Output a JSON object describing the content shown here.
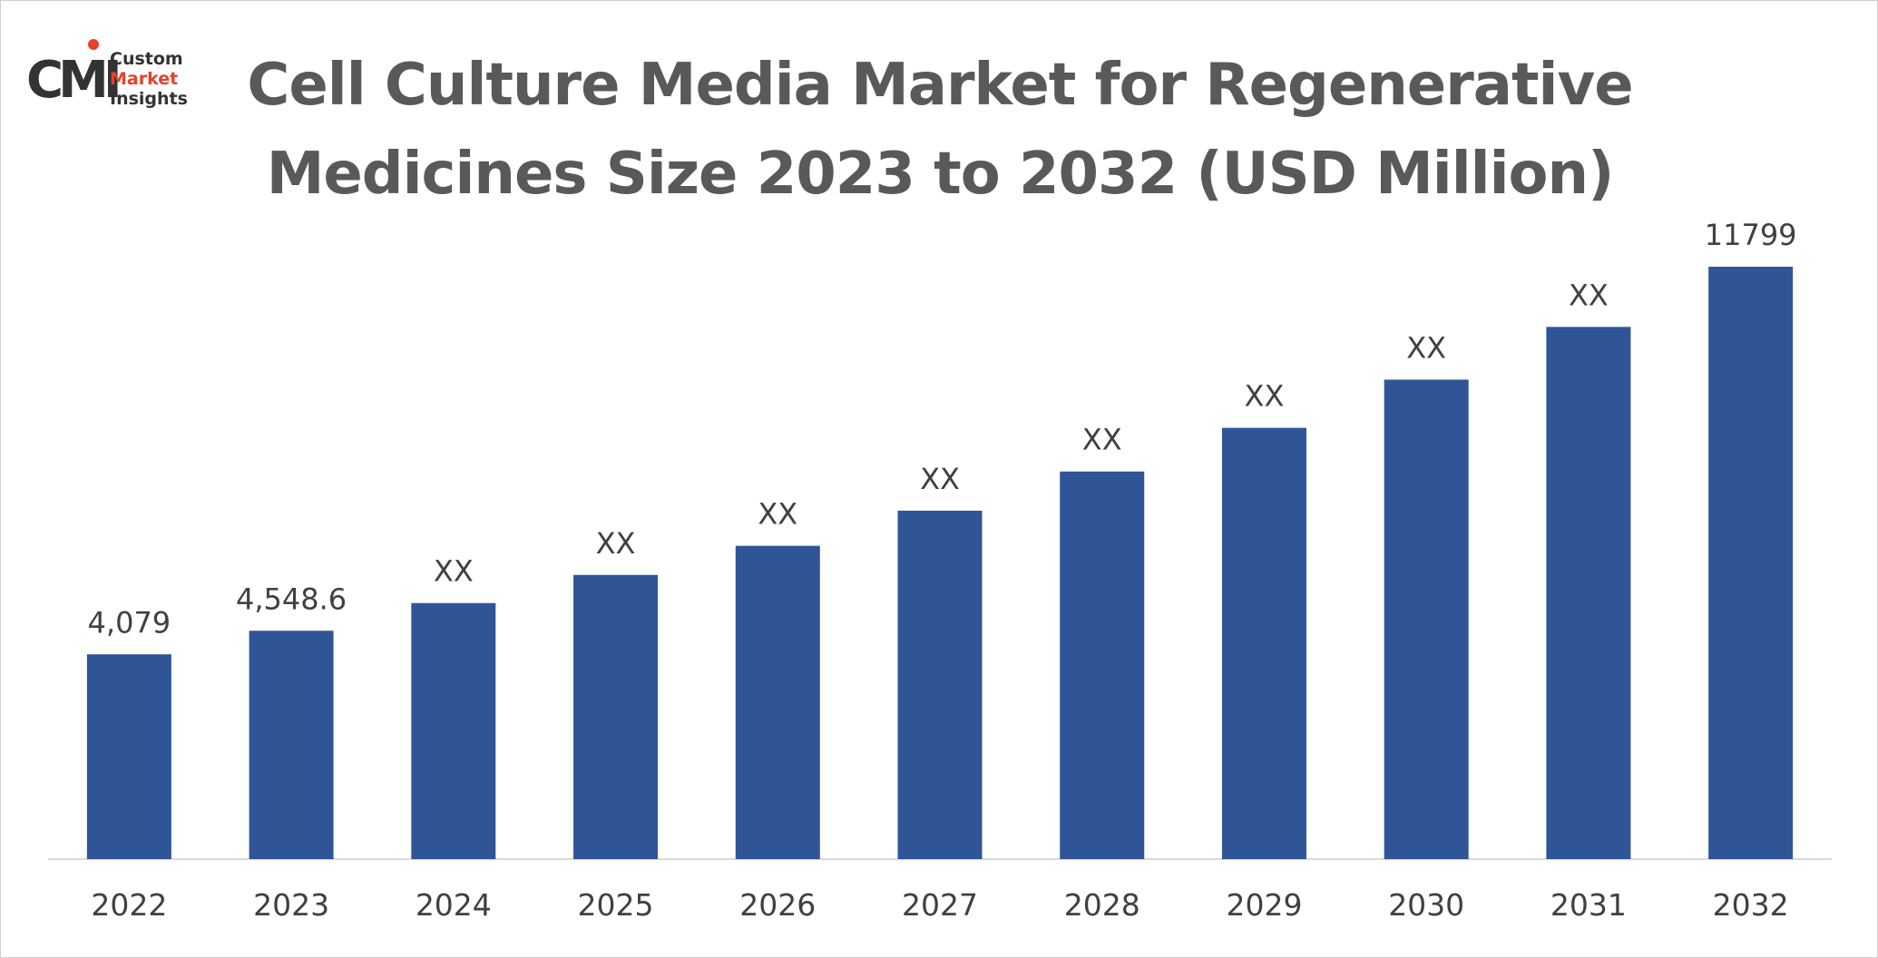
{
  "logo": {
    "mark": "CMI",
    "line1": "Custom",
    "line2": "Market",
    "line3": "Insights",
    "colors": {
      "dark": "#333333",
      "accent": "#e8412b"
    }
  },
  "chart_data": {
    "type": "bar",
    "title": "Cell Culture Media Market for Regenerative Medicines Size 2023 to 2032 (USD Million)",
    "xlabel": "",
    "ylabel": "",
    "categories": [
      "2022",
      "2023",
      "2024",
      "2025",
      "2026",
      "2027",
      "2028",
      "2029",
      "2030",
      "2031",
      "2032"
    ],
    "values": [
      4079,
      4548.6,
      5100,
      5660,
      6240,
      6940,
      7720,
      8590,
      9550,
      10600,
      11799
    ],
    "data_labels": [
      "4,079",
      "4,548.6",
      "XX",
      "XX",
      "XX",
      "XX",
      "XX",
      "XX",
      "XX",
      "XX",
      "11799"
    ],
    "ylim": [
      0,
      13000
    ],
    "grid": false,
    "legend": "none",
    "bar_color": "#2f5597",
    "axis_color": "#d9d9d9",
    "text_color": "#404040"
  }
}
